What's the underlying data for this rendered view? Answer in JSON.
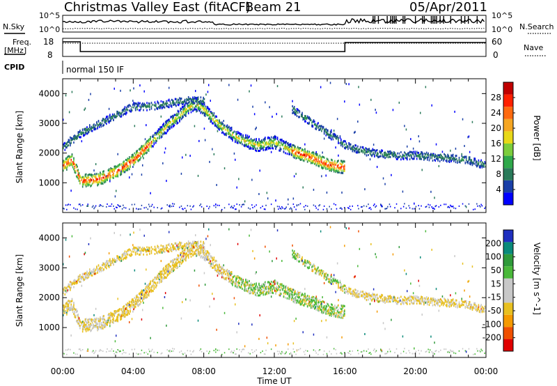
{
  "header": {
    "station": "Christmas Valley East (fitACF)",
    "beam": "Beam 21",
    "date": "05/Apr/2011"
  },
  "strip": {
    "nsky_label": "N.Sky",
    "nsearch_label": "N.Search",
    "freq_label_1": "Freq.",
    "freq_label_2": "[MHz]",
    "nave_label": "Nave",
    "cpid_label": "CPID",
    "cpid_value": "normal 150 IF",
    "noise_ticks": [
      "10^5",
      "10^0"
    ],
    "noise_right_ticks": [
      "10^5",
      "10^0"
    ],
    "freq_ticks": [
      "18",
      "8"
    ],
    "nave_ticks": [
      "60",
      "0"
    ]
  },
  "colors": {
    "power": [
      "#0000ff",
      "#1a3fa8",
      "#2a7a5a",
      "#2fa84a",
      "#7ccd3c",
      "#e8d818",
      "#f5a623",
      "#ff6a10",
      "#ff2000",
      "#c00000"
    ],
    "velocity": [
      "#e00000",
      "#f05000",
      "#f59a00",
      "#e8c020",
      "#c8c8c8",
      "#c8c8c8",
      "#4ab83a",
      "#2f9a3a",
      "#0a8a7a",
      "#1f2fbf"
    ]
  },
  "chart_data": [
    {
      "type": "heatmap",
      "title": "",
      "xlabel": "Time UT",
      "ylabel": "Slant Range [km]",
      "xlim": [
        "00:00",
        "24:00"
      ],
      "ylim": [
        0,
        4500
      ],
      "x_ticks": [
        "00:00",
        "04:00",
        "08:00",
        "12:00",
        "16:00",
        "20:00",
        "00:00"
      ],
      "y_ticks": [
        1000,
        2000,
        3000,
        4000
      ],
      "colorbar": {
        "label": "Power [dB]",
        "ticks": [
          4,
          8,
          12,
          16,
          20,
          24,
          28
        ],
        "range": [
          0,
          30
        ]
      },
      "features": [
        {
          "name": "main_echo",
          "t": [
            0.0,
            0.5,
            1.0,
            2.0,
            3.0,
            4.0,
            5.0,
            6.0,
            7.0,
            7.5,
            8.0,
            9.0,
            10.0,
            11.0,
            12.0,
            13.0,
            14.0,
            15.0,
            16.0
          ],
          "range": [
            1600,
            1800,
            1100,
            1150,
            1400,
            1800,
            2400,
            3000,
            3500,
            3700,
            3500,
            2900,
            2500,
            2300,
            2400,
            2100,
            1900,
            1650,
            1550
          ]
        },
        {
          "name": "upper_band",
          "t": [
            0.0,
            1.0,
            2.0,
            3.0,
            4.0,
            5.0,
            6.0,
            7.0,
            8.0
          ],
          "range": [
            2200,
            2700,
            3000,
            3300,
            3600,
            3600,
            3700,
            3800,
            3800
          ]
        },
        {
          "name": "evening_band",
          "t": [
            13.0,
            14.0,
            15.0,
            16.0
          ],
          "range": [
            3500,
            3100,
            2700,
            2300
          ]
        },
        {
          "name": "night_band",
          "t": [
            16.0,
            17.0,
            18.0,
            19.0,
            20.0,
            21.0,
            22.0,
            23.0,
            24.0
          ],
          "range": [
            2300,
            2100,
            2000,
            1950,
            1950,
            1900,
            1850,
            1800,
            1600
          ]
        }
      ]
    },
    {
      "type": "heatmap",
      "title": "",
      "xlabel": "Time UT",
      "ylabel": "Slant Range [km]",
      "xlim": [
        "00:00",
        "24:00"
      ],
      "ylim": [
        0,
        4500
      ],
      "x_ticks": [
        "00:00",
        "04:00",
        "08:00",
        "12:00",
        "16:00",
        "20:00",
        "00:00"
      ],
      "y_ticks": [
        1000,
        2000,
        3000,
        4000
      ],
      "colorbar": {
        "label": "Velocity [m s^-1]",
        "ticks": [
          -200,
          -100,
          -50,
          -15,
          15,
          50,
          100,
          200
        ]
      }
    }
  ]
}
